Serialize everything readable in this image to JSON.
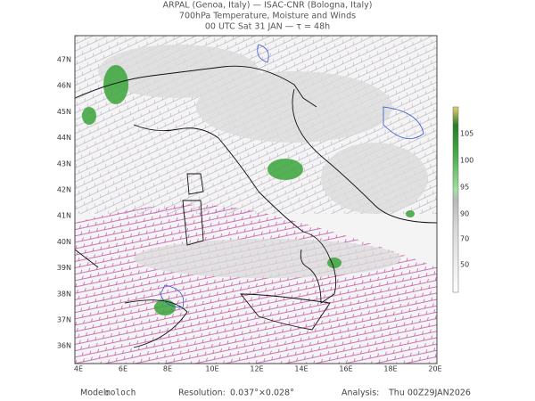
{
  "header": {
    "lines": [
      "ARPAL (Genoa, Italy)  —  ISAC-CNR (Bologna, Italy)",
      "700hPa Temperature, Moisture and Winds",
      "00 UTC Sat 31 JAN  —  τ = 48h"
    ]
  },
  "map": {
    "lat_labels": [
      "47N",
      "46N",
      "45N",
      "44N",
      "43N",
      "42N",
      "41N",
      "40N",
      "39N",
      "38N",
      "37N",
      "36N"
    ],
    "lon_labels": [
      "4E",
      "6E",
      "8E",
      "10E",
      "12E",
      "14E",
      "16E",
      "18E",
      "20E"
    ]
  },
  "colorbar": {
    "labels": [
      "105",
      "100",
      "95",
      "90",
      "70",
      "50"
    ]
  },
  "footer": [
    {
      "label": "Model:",
      "value": "moloch"
    },
    {
      "label": "Resolution:",
      "value": "0.037°×0.028°"
    },
    {
      "label": "Analysis:",
      "value": "Thu 00Z29JAN2026"
    }
  ]
}
